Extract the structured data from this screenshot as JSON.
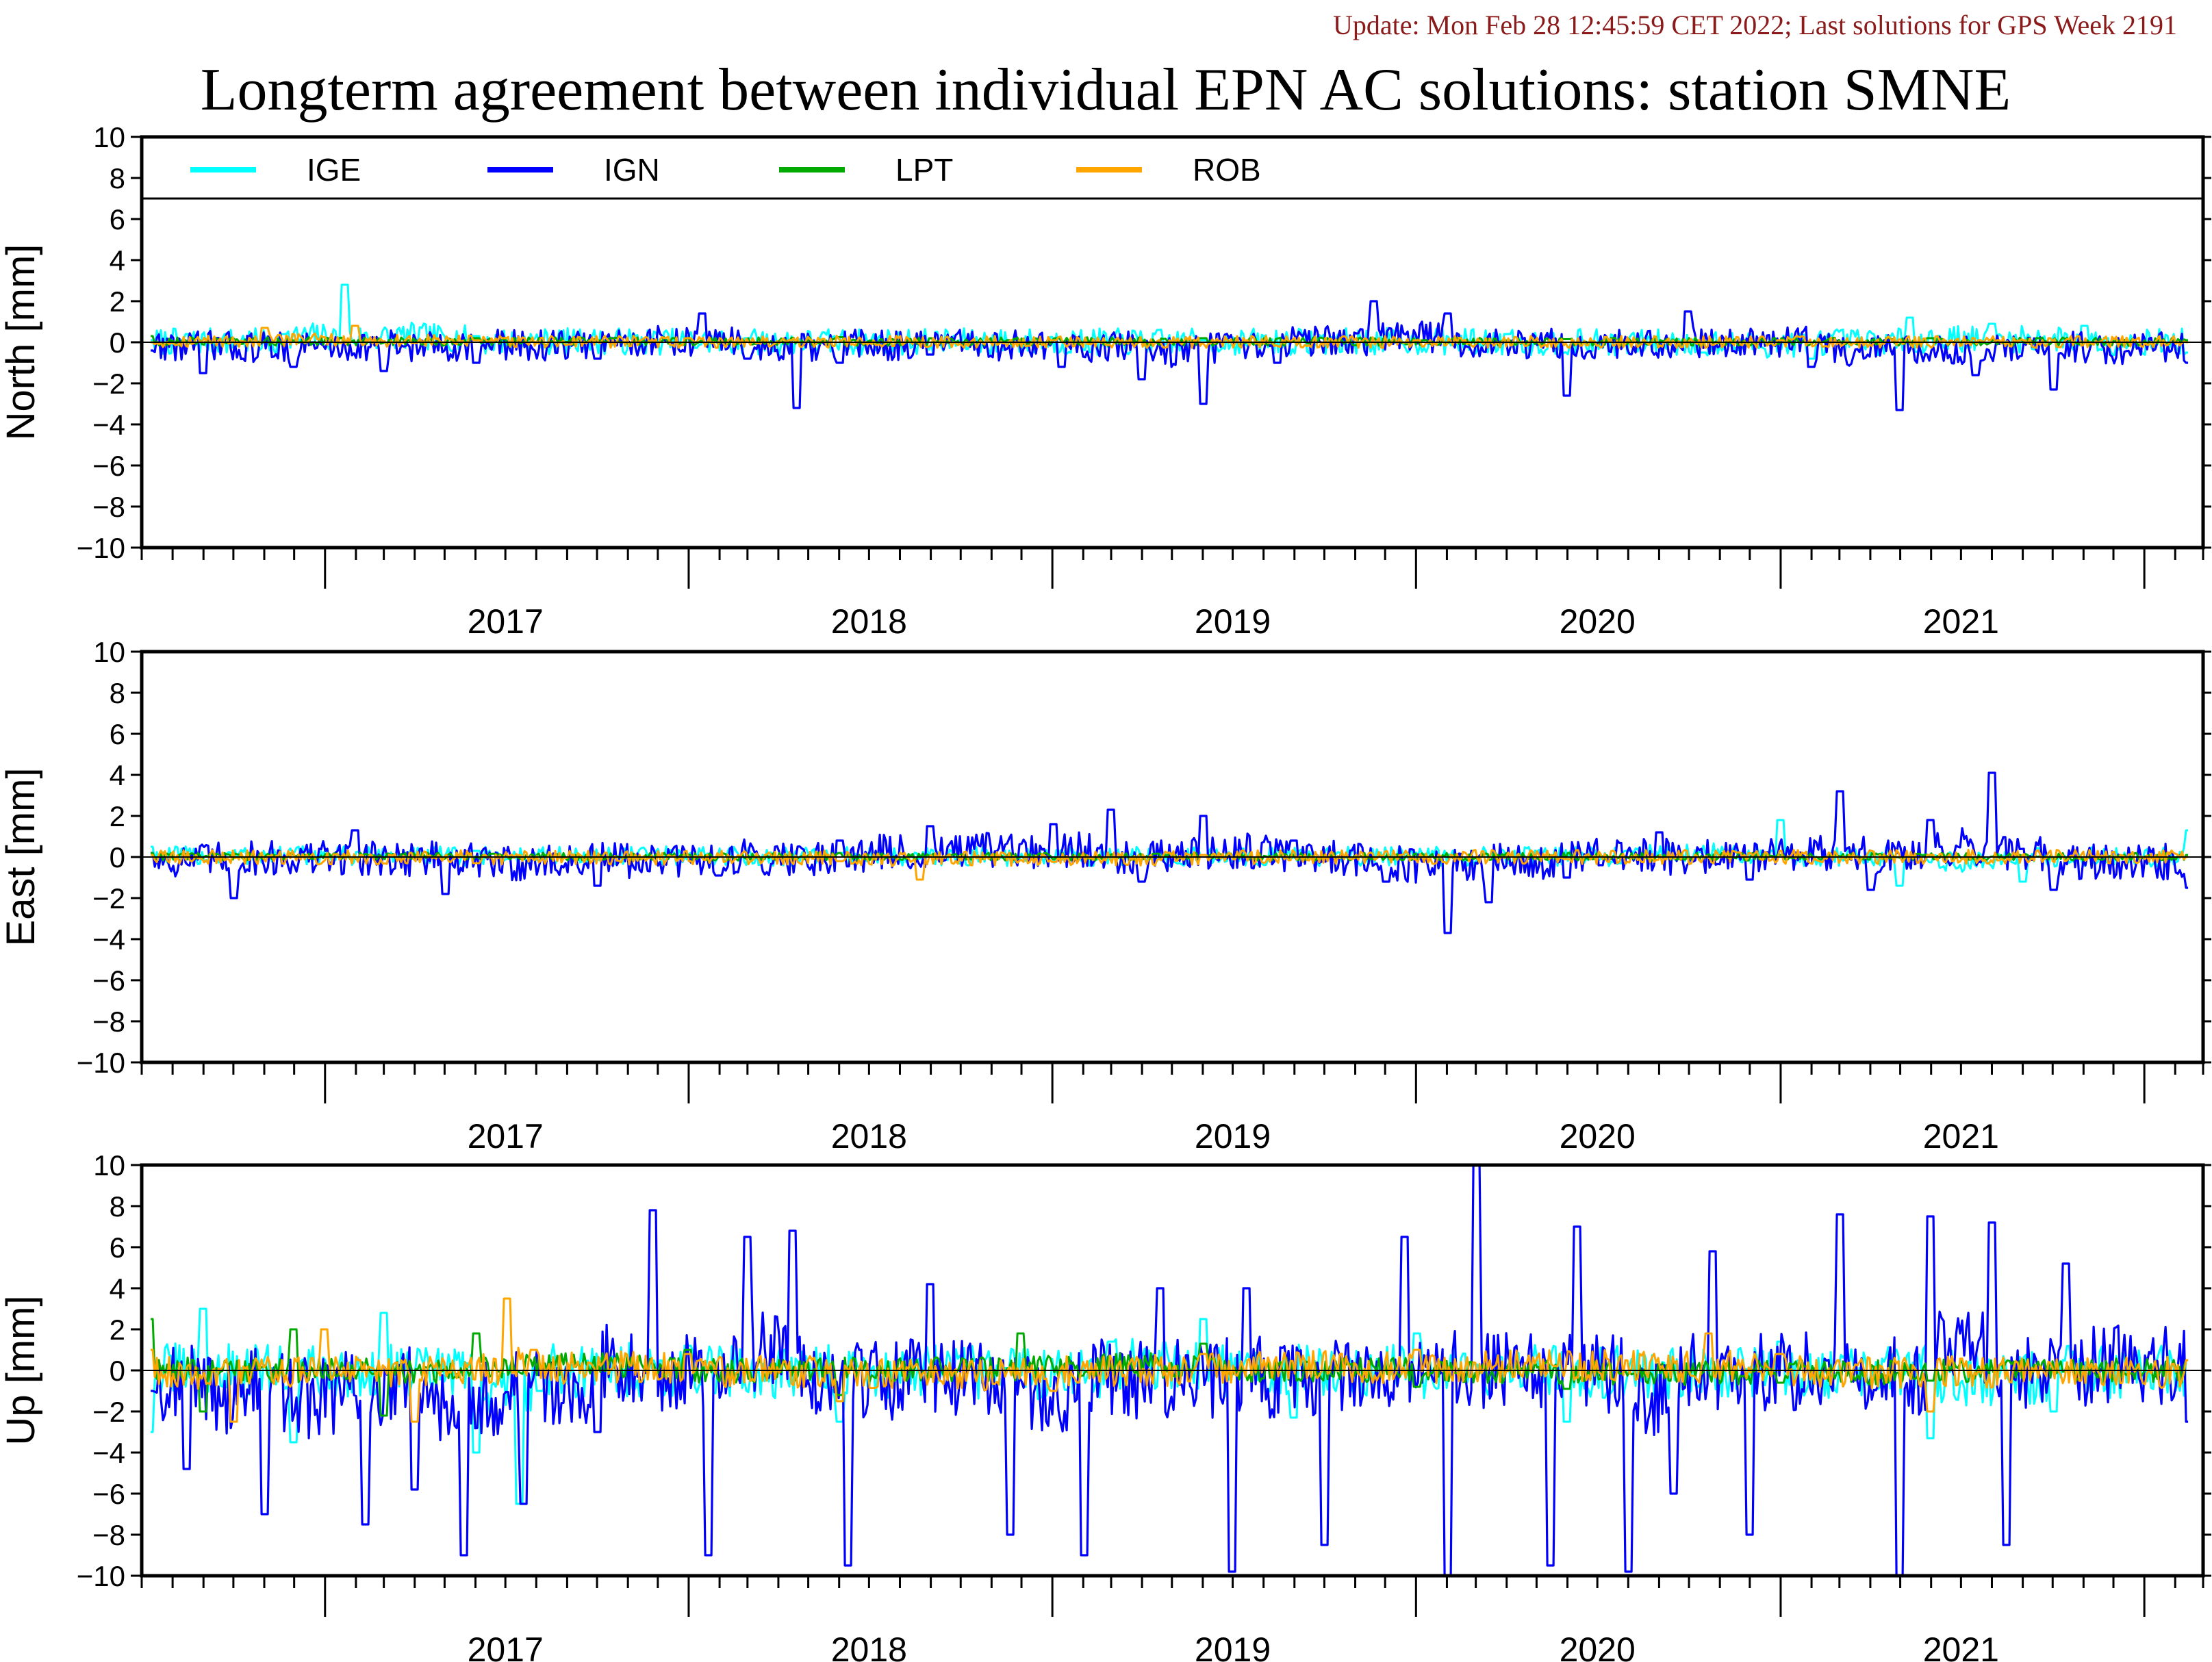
{
  "header": {
    "update_note": "Update: Mon Feb 28 12:45:59 CET 2022; Last solutions for GPS Week 2191",
    "update_color": "#8b1a1a",
    "title": "Longterm agreement between individual EPN AC solutions: station SMNE"
  },
  "legend": [
    {
      "name": "IGE",
      "color": "#00ffff"
    },
    {
      "name": "IGN",
      "color": "#0000ff"
    },
    {
      "name": "LPT",
      "color": "#00aa00"
    },
    {
      "name": "ROB",
      "color": "#ffa500"
    }
  ],
  "chart_data": [
    {
      "type": "line",
      "component": "north",
      "ylabel": "North [mm]",
      "ylim": [
        -10,
        10
      ],
      "yticks": [
        "10",
        "8",
        "6",
        "4",
        "2",
        "0",
        "−2",
        "−4",
        "−6",
        "−8",
        "−10"
      ],
      "xlim": [
        "2016-07-01",
        "2022-03-01"
      ],
      "year_labels": [
        "2017",
        "2018",
        "2019",
        "2020",
        "2021"
      ],
      "series": [
        {
          "name": "IGE",
          "color": "#00ffff",
          "x": [
            "2016-07-10",
            "2016-11-20",
            "2017-01-20",
            "2017-06-01",
            "2018-03-01",
            "2019-06-01",
            "2020-04-01",
            "2020-10-15",
            "2021-02-01",
            "2021-05-10",
            "2021-08-01",
            "2021-11-01",
            "2022-02-15"
          ],
          "y": [
            0.1,
            0.4,
            2.8,
            0.3,
            0.2,
            0.1,
            0.4,
            -0.5,
            -0.8,
            1.2,
            0.9,
            0.8,
            -0.5
          ]
        },
        {
          "name": "IGN",
          "color": "#0000ff",
          "x": [
            "2016-07-10",
            "2016-09-01",
            "2016-12-01",
            "2017-03-01",
            "2017-06-01",
            "2017-10-01",
            "2018-01-15",
            "2018-03-01",
            "2018-04-20",
            "2018-06-01",
            "2018-09-01",
            "2019-01-10",
            "2019-04-01",
            "2019-06-01",
            "2019-08-15",
            "2019-11-20",
            "2020-02-01",
            "2020-06-01",
            "2020-10-01",
            "2021-02-01",
            "2021-05-01",
            "2021-07-15",
            "2021-10-01",
            "2022-02-15"
          ],
          "y": [
            -0.4,
            -1.5,
            -1.2,
            -1.4,
            -1.0,
            -0.8,
            1.4,
            -0.8,
            -3.2,
            -1.0,
            -0.6,
            -1.2,
            -1.8,
            -3.0,
            -1.0,
            2.0,
            1.4,
            -2.6,
            1.5,
            -1.2,
            -3.3,
            -1.6,
            -2.3,
            -1.0
          ]
        },
        {
          "name": "LPT",
          "color": "#00aa00",
          "x": [
            "2016-07-10",
            "2017-06-01",
            "2018-06-01",
            "2019-06-01",
            "2020-06-01",
            "2021-06-01",
            "2022-02-15"
          ],
          "y": [
            0.3,
            0.2,
            0.25,
            0.2,
            0.15,
            0.2,
            0.1
          ]
        },
        {
          "name": "ROB",
          "color": "#ffa500",
          "x": [
            "2016-07-10",
            "2016-11-01",
            "2017-02-01",
            "2017-06-01",
            "2018-01-01",
            "2019-01-01",
            "2020-01-01",
            "2021-01-01",
            "2022-02-15"
          ],
          "y": [
            0.0,
            0.7,
            0.8,
            0.1,
            0.2,
            0.1,
            0.1,
            0.1,
            0.0
          ]
        }
      ]
    },
    {
      "type": "line",
      "component": "east",
      "ylabel": "East [mm]",
      "ylim": [
        -10,
        10
      ],
      "yticks": [
        "10",
        "8",
        "6",
        "4",
        "2",
        "0",
        "−2",
        "−4",
        "−6",
        "−8",
        "−10"
      ],
      "xlim": [
        "2016-07-01",
        "2022-03-01"
      ],
      "year_labels": [
        "2017",
        "2018",
        "2019",
        "2020",
        "2021"
      ],
      "series": [
        {
          "name": "IGE",
          "color": "#00ffff",
          "x": [
            "2016-07-10",
            "2017-06-01",
            "2018-06-01",
            "2019-06-01",
            "2020-08-01",
            "2021-01-01",
            "2021-05-01",
            "2021-09-01",
            "2022-02-15"
          ],
          "y": [
            0.5,
            0.3,
            0.2,
            0.1,
            0.3,
            1.8,
            -1.4,
            -1.2,
            1.3
          ]
        },
        {
          "name": "IGN",
          "color": "#0000ff",
          "x": [
            "2016-07-10",
            "2016-10-01",
            "2017-02-01",
            "2017-05-01",
            "2017-10-01",
            "2018-02-01",
            "2018-06-01",
            "2018-09-01",
            "2019-01-01",
            "2019-03-01",
            "2019-04-01",
            "2019-06-01",
            "2019-09-01",
            "2019-12-01",
            "2020-02-01",
            "2020-03-15",
            "2020-06-01",
            "2020-09-01",
            "2020-12-01",
            "2021-03-01",
            "2021-04-01",
            "2021-06-01",
            "2021-08-01",
            "2021-10-01",
            "2022-02-15"
          ],
          "y": [
            0.2,
            -2.0,
            1.3,
            -1.8,
            -1.4,
            -0.9,
            0.8,
            1.5,
            1.6,
            2.3,
            -1.2,
            2.0,
            0.8,
            -1.2,
            -3.7,
            -2.2,
            -1.0,
            1.2,
            -1.1,
            3.2,
            -1.6,
            1.8,
            4.1,
            -1.6,
            -1.5
          ]
        },
        {
          "name": "LPT",
          "color": "#00aa00",
          "x": [
            "2016-07-10",
            "2018-01-01",
            "2019-06-01",
            "2021-01-01",
            "2022-02-15"
          ],
          "y": [
            0.2,
            0.1,
            0.1,
            0.1,
            0.1
          ]
        },
        {
          "name": "ROB",
          "color": "#ffa500",
          "x": [
            "2016-07-10",
            "2017-06-01",
            "2018-06-01",
            "2018-08-20",
            "2019-06-01",
            "2020-06-01",
            "2021-06-01",
            "2022-02-15"
          ],
          "y": [
            0.1,
            -0.3,
            -0.2,
            -1.1,
            0.1,
            -0.1,
            0.1,
            0.0
          ]
        }
      ]
    },
    {
      "type": "line",
      "component": "up",
      "ylabel": "Up [mm]",
      "ylim": [
        -10,
        10
      ],
      "yticks": [
        "10",
        "8",
        "6",
        "4",
        "2",
        "0",
        "−2",
        "−4",
        "−6",
        "−8",
        "−10"
      ],
      "xlim": [
        "2016-07-01",
        "2022-03-01"
      ],
      "year_labels": [
        "2017",
        "2018",
        "2019",
        "2020",
        "2021"
      ],
      "series": [
        {
          "name": "IGE",
          "color": "#00ffff",
          "x": [
            "2016-07-10",
            "2016-09-01",
            "2016-12-01",
            "2017-03-01",
            "2017-06-01",
            "2017-07-15",
            "2017-08-05",
            "2018-01-01",
            "2018-06-01",
            "2019-03-01",
            "2019-06-01",
            "2019-09-01",
            "2020-01-01",
            "2020-06-01",
            "2021-01-01",
            "2021-06-01",
            "2021-10-01",
            "2022-02-15"
          ],
          "y": [
            -3.0,
            3.0,
            -3.5,
            2.8,
            -4.0,
            -6.5,
            -1.0,
            1.2,
            -2.5,
            1.4,
            2.5,
            -2.3,
            1.8,
            -2.5,
            1.4,
            -3.3,
            -2.0,
            0.5
          ]
        },
        {
          "name": "IGN",
          "color": "#0000ff",
          "x": [
            "2016-07-10",
            "2016-08-15",
            "2016-11-01",
            "2017-02-10",
            "2017-04-01",
            "2017-05-20",
            "2017-07-20",
            "2017-10-01",
            "2017-11-25",
            "2018-01-20",
            "2018-03-01",
            "2018-04-15",
            "2018-06-10",
            "2018-09-01",
            "2018-11-20",
            "2019-02-01",
            "2019-04-20",
            "2019-07-01",
            "2019-07-15",
            "2019-10-01",
            "2019-12-20",
            "2020-02-01",
            "2020-03-01",
            "2020-05-15",
            "2020-06-10",
            "2020-08-01",
            "2020-09-15",
            "2020-10-25",
            "2020-12-01",
            "2021-03-01",
            "2021-05-01",
            "2021-06-01",
            "2021-08-01",
            "2021-08-15",
            "2021-10-15",
            "2022-02-15"
          ],
          "y": [
            -1.0,
            -4.8,
            -7.0,
            -7.5,
            -5.8,
            -9.0,
            -6.5,
            -3.0,
            7.8,
            -9.0,
            6.5,
            6.8,
            -9.5,
            4.2,
            -8.0,
            -9.0,
            4.0,
            -9.8,
            4.0,
            -8.5,
            6.5,
            -10.0,
            10.0,
            -9.5,
            7.0,
            -9.8,
            -6.0,
            5.8,
            -8.0,
            7.6,
            -10.0,
            7.5,
            7.2,
            -8.5,
            5.2,
            -2.5
          ]
        },
        {
          "name": "LPT",
          "color": "#00aa00",
          "x": [
            "2016-07-10",
            "2016-09-01",
            "2016-12-01",
            "2017-03-01",
            "2017-06-01",
            "2018-01-01",
            "2018-06-01",
            "2018-12-01",
            "2019-06-01",
            "2020-01-01",
            "2020-06-01",
            "2021-01-01",
            "2021-06-01",
            "2022-02-15"
          ],
          "y": [
            2.5,
            -2.0,
            2.0,
            -2.2,
            1.8,
            1.0,
            -1.2,
            1.8,
            1.3,
            -0.8,
            -0.9,
            -0.6,
            -0.5,
            0.5
          ]
        },
        {
          "name": "ROB",
          "color": "#ffa500",
          "x": [
            "2016-07-10",
            "2016-10-01",
            "2017-01-01",
            "2017-04-01",
            "2017-07-02",
            "2017-07-30",
            "2018-01-01",
            "2018-06-01",
            "2019-01-01",
            "2019-06-01",
            "2020-01-01",
            "2020-10-20",
            "2021-01-01",
            "2021-06-01",
            "2022-02-15"
          ],
          "y": [
            1.0,
            -2.5,
            2.0,
            -2.5,
            3.5,
            1.0,
            0.8,
            -1.5,
            -1.0,
            0.8,
            1.0,
            1.8,
            0.8,
            -2.0,
            0.5
          ]
        }
      ]
    }
  ]
}
